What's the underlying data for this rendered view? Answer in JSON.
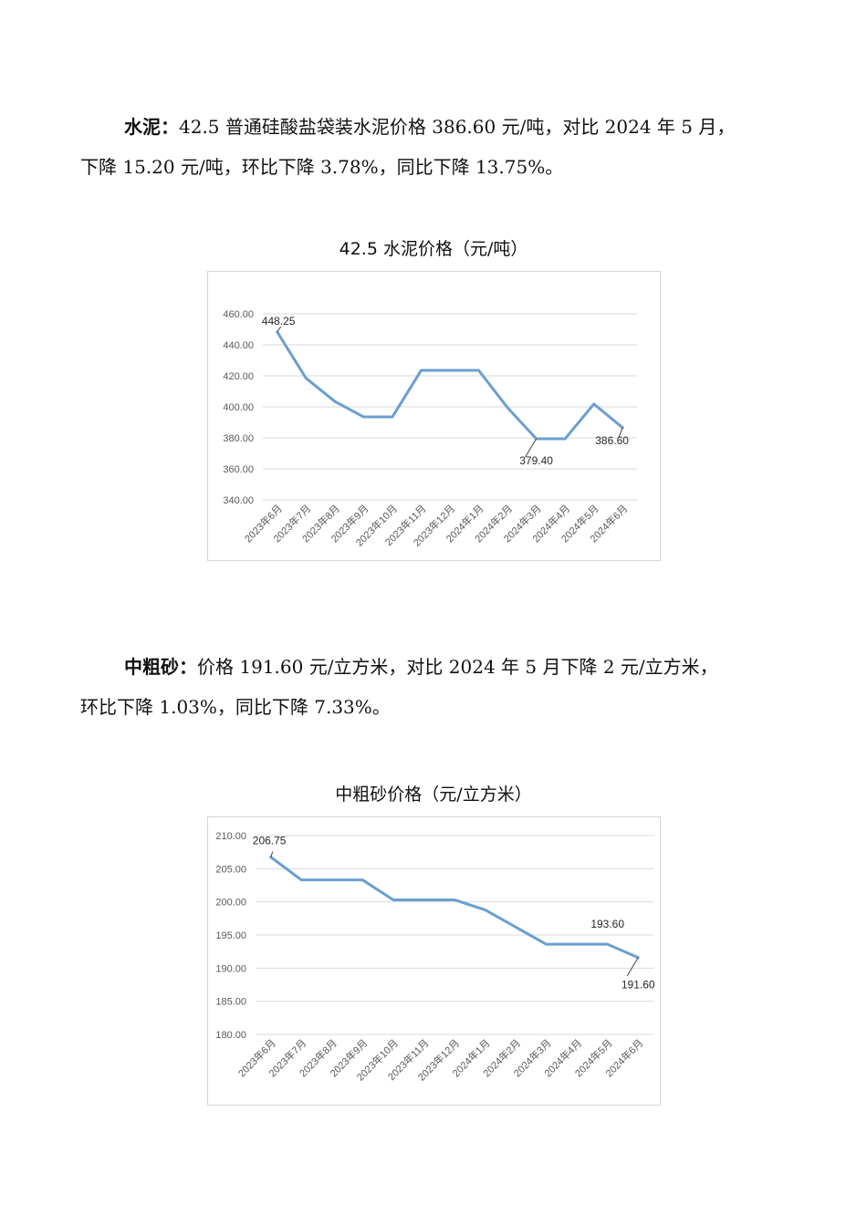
{
  "cement": {
    "para_lead": "水泥：",
    "para_line1_rest": "42.5 普通硅酸盐袋装水泥价格 386.60 元/吨，对比 2024 年 5 月，",
    "para_line2": "下降 15.20 元/吨，环比下降 3.78%，同比下降 13.75%。",
    "chart_title": "42.5 水泥价格（元/吨）"
  },
  "sand": {
    "para_lead": "中粗砂：",
    "para_line1_rest": "价格 191.60 元/立方米，对比 2024 年 5 月下降 2 元/立方米，",
    "para_line2": "环比下降 1.03%，同比下降 7.33%。",
    "chart_title": "中粗砂价格（元/立方米）"
  },
  "chart_data": [
    {
      "type": "line",
      "title": "42.5 水泥价格（元/吨）",
      "categories": [
        "2023年6月",
        "2023年7月",
        "2023年8月",
        "2023年9月",
        "2023年10月",
        "2023年11月",
        "2023年12月",
        "2024年1月",
        "2024年2月",
        "2024年3月",
        "2024年4月",
        "2024年5月",
        "2024年6月"
      ],
      "values": [
        448.25,
        418.5,
        403.5,
        393.5,
        393.5,
        423.5,
        423.5,
        423.5,
        399.5,
        379.4,
        379.4,
        401.8,
        386.6
      ],
      "ylim": [
        340,
        460
      ],
      "yticks": [
        "340.00",
        "360.00",
        "380.00",
        "400.00",
        "420.00",
        "440.00",
        "460.00"
      ],
      "data_labels": [
        {
          "index": 0,
          "text": "448.25"
        },
        {
          "index": 9,
          "text": "379.40"
        },
        {
          "index": 12,
          "text": "386.60"
        }
      ],
      "line_color": "#6a9fd0",
      "grid": true
    },
    {
      "type": "line",
      "title": "中粗砂价格（元/立方米）",
      "categories": [
        "2023年6月",
        "2023年7月",
        "2023年8月",
        "2023年9月",
        "2023年10月",
        "2023年11月",
        "2023年12月",
        "2024年1月",
        "2024年2月",
        "2024年3月",
        "2024年4月",
        "2024年5月",
        "2024年6月"
      ],
      "values": [
        206.75,
        203.3,
        203.3,
        203.3,
        200.3,
        200.3,
        200.3,
        198.8,
        196.2,
        193.6,
        193.6,
        193.6,
        191.6
      ],
      "ylim": [
        180,
        210
      ],
      "yticks": [
        "180.00",
        "185.00",
        "190.00",
        "195.00",
        "200.00",
        "205.00",
        "210.00"
      ],
      "data_labels": [
        {
          "index": 0,
          "text": "206.75"
        },
        {
          "index": 11,
          "text": "193.60"
        },
        {
          "index": 12,
          "text": "191.60"
        }
      ],
      "line_color": "#6a9fd0",
      "grid": true
    }
  ]
}
